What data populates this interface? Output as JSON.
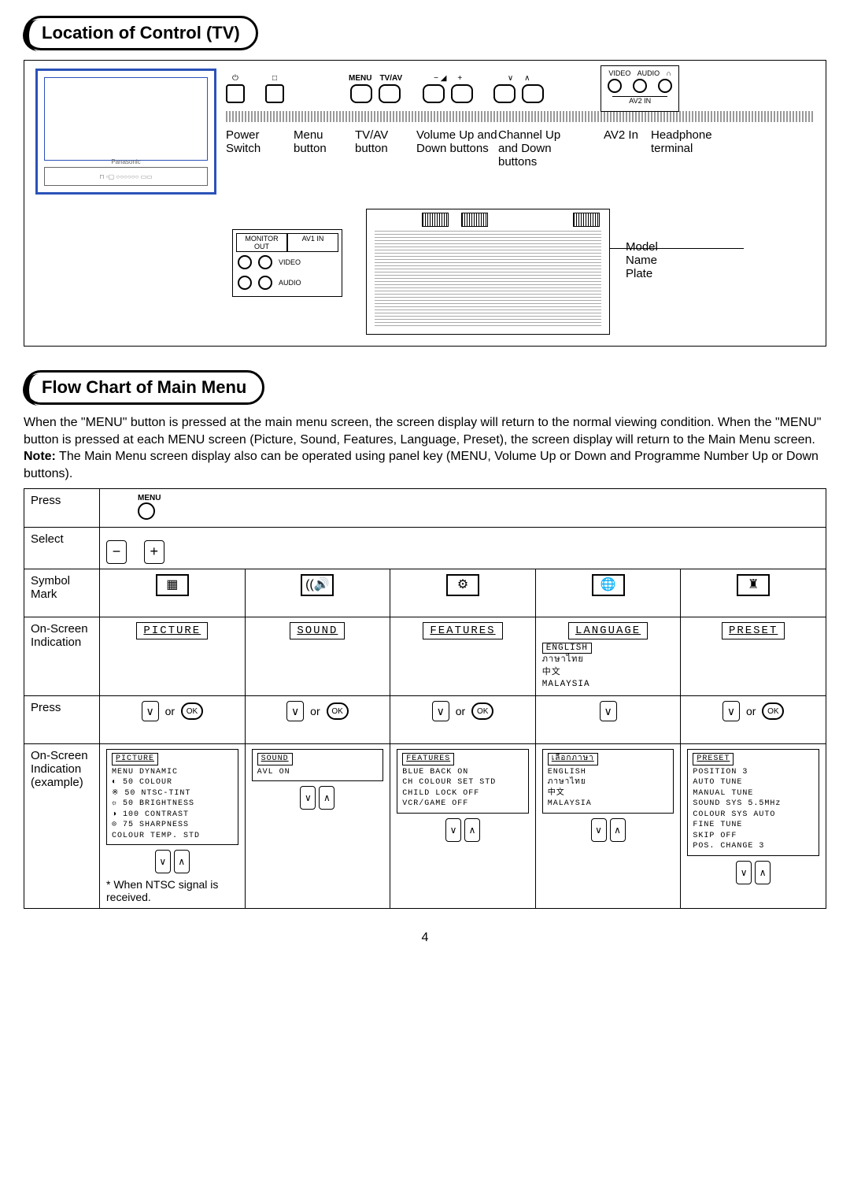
{
  "page_number": "4",
  "section1": {
    "heading": "Location of Control (TV)",
    "front_controls": {
      "top_labels": {
        "power": "⏻",
        "menu_square": "□",
        "menu": "MENU",
        "tvav": "TV/AV",
        "minus": "− ◢",
        "plus": "+",
        "down": "∨",
        "up": "∧",
        "video": "VIDEO",
        "audio": "AUDIO",
        "headphone_sym": "∩",
        "av2in": "AV2 IN"
      },
      "callouts": [
        "Power Switch",
        "Menu button",
        "TV/AV button",
        "Volume Up and Down buttons",
        "Channel Up and Down buttons",
        "AV2 In",
        "Headphone terminal"
      ]
    },
    "rear": {
      "monitor_out": "MONITOR OUT",
      "av1_in": "AV1 IN",
      "video": "VIDEO",
      "audio": "AUDIO",
      "model_plate": "Model Name Plate"
    }
  },
  "section2": {
    "heading": "Flow Chart of Main Menu",
    "intro_p1": "When the \"MENU\" button is pressed at the main menu screen, the screen display will return to the normal viewing condition. When the \"MENU\" button is pressed at each MENU screen (Picture, Sound, Features, Language, Preset), the screen display will return to the Main Menu screen.",
    "note_label": "Note:",
    "intro_note": "The Main Menu screen display also can be operated using panel key (MENU, Volume Up or Down and Programme Number Up or Down buttons).",
    "rows": {
      "press1": "Press",
      "select": "Select",
      "symbol": "Symbol Mark",
      "osd1": "On-Screen Indication",
      "press2": "Press",
      "osd2_label_l1": "On-Screen",
      "osd2_label_l2": "Indication",
      "osd2_label_l3": "(example)"
    },
    "menu_label": "MENU",
    "minus": "−",
    "plus": "+",
    "or": "or",
    "ok": "OK",
    "columns": [
      {
        "id": "picture",
        "symbol_text": "▦",
        "osd1": "PICTURE",
        "osd2_title": "PICTURE",
        "osd2_lines": [
          "MENU DYNAMIC",
          "◐  50 COLOUR",
          "※  50 NTSC-TINT",
          "☼  50 BRIGHTNESS",
          "◑ 100 CONTRAST",
          "⊙  75 SHARPNESS",
          "COLOUR TEMP. STD"
        ],
        "footer": "* When NTSC signal is received."
      },
      {
        "id": "sound",
        "symbol_text": "((🔊",
        "osd1": "SOUND",
        "osd2_title": "SOUND",
        "osd2_lines": [
          "AVL          ON"
        ]
      },
      {
        "id": "features",
        "symbol_text": "⚙",
        "osd1": "FEATURES",
        "osd2_title": "FEATURES",
        "osd2_lines": [
          "BLUE BACK     ON",
          "CH COLOUR SET STD",
          "CHILD LOCK    OFF",
          "VCR/GAME      OFF"
        ]
      },
      {
        "id": "language",
        "symbol_text": "🌐",
        "osd1": "LANGUAGE",
        "osd1_extra": [
          "ENGLISH",
          "ภาษาไทย",
          "中文",
          "MALAYSIA"
        ],
        "osd2_title": "เลือกภาษา",
        "osd2_lines": [
          "ENGLISH",
          "ภาษาไทย",
          "中文",
          "MALAYSIA"
        ],
        "no_ok": true
      },
      {
        "id": "preset",
        "symbol_text": "♜",
        "osd1": "PRESET",
        "osd2_title": "PRESET",
        "osd2_lines": [
          "POSITION       3",
          "AUTO TUNE",
          "MANUAL TUNE",
          "SOUND SYS  5.5MHz",
          "COLOUR SYS  AUTO",
          "FINE TUNE",
          "SKIP         OFF",
          "POS. CHANGE   3"
        ]
      }
    ]
  },
  "colors": {
    "accent_blue": "#2a52b8",
    "text": "#000000",
    "bg": "#ffffff",
    "grid": "#aaaaaa"
  }
}
